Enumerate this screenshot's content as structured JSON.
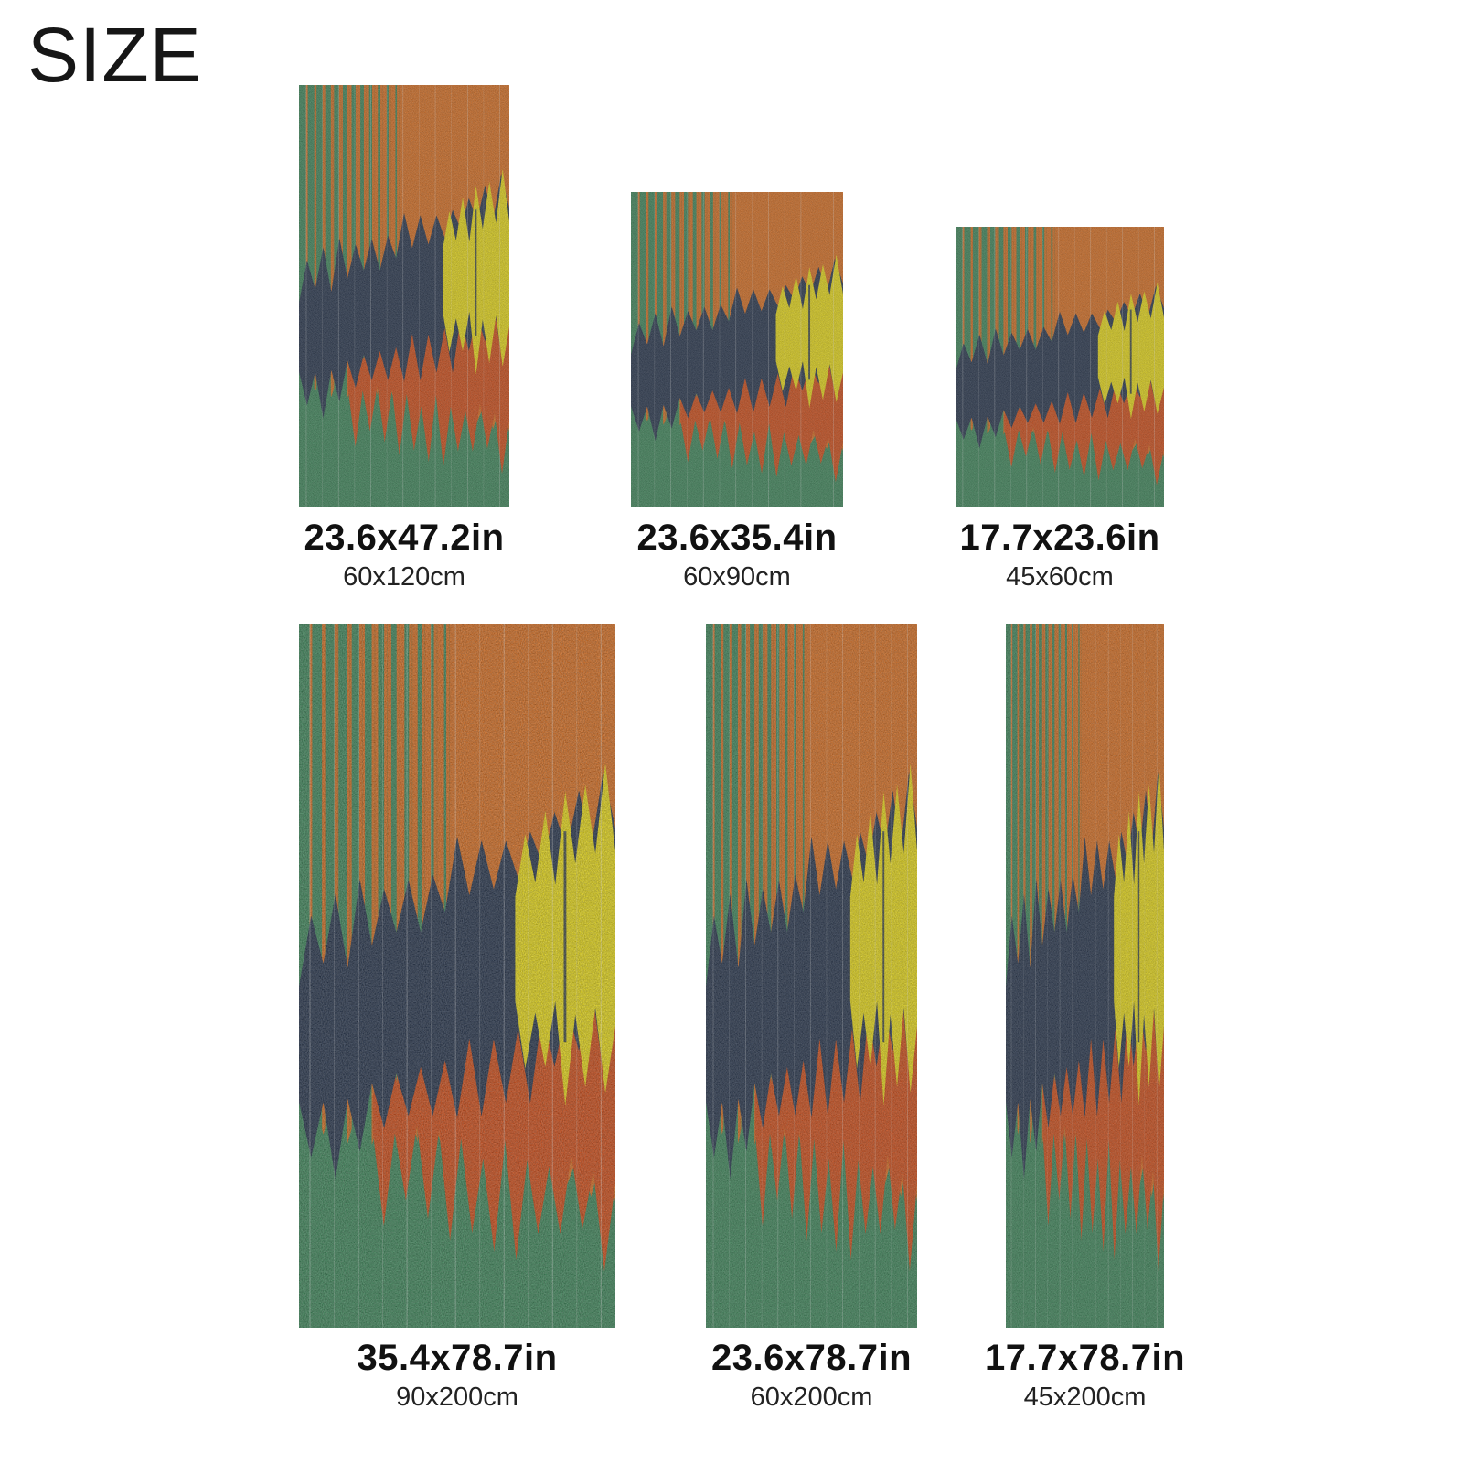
{
  "title": "SIZE",
  "rugs": [
    {
      "size_in": "23.6x47.2in",
      "size_cm": "60x120cm"
    },
    {
      "size_in": "23.6x35.4in",
      "size_cm": "60x90cm"
    },
    {
      "size_in": "17.7x23.6in",
      "size_cm": "45x60cm"
    },
    {
      "size_in": "35.4x78.7in",
      "size_cm": "90x200cm"
    },
    {
      "size_in": "23.6x78.7in",
      "size_cm": "60x200cm"
    },
    {
      "size_in": "17.7x78.7in",
      "size_cm": "45x200cm"
    }
  ],
  "palette": {
    "background": "#ffffff",
    "orange": "#dd6e1c",
    "green": "#3a8758",
    "navy": "#213049",
    "red": "#d44a12",
    "yellow": "#eedf12",
    "stripe_line": "#8a6a28",
    "pinstripe": "#ffffff",
    "label_color": "#111111",
    "sublabel_color": "#222222"
  }
}
